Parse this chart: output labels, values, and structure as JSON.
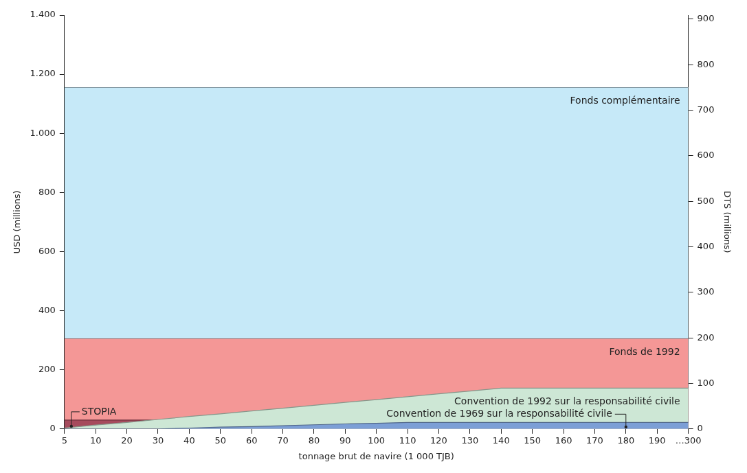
{
  "chart_data": {
    "type": "area",
    "xlabel": "tonnage brut de navire (1 000 TJB)",
    "ylabel": "USD (millions)",
    "y2label": "DTS (millions)",
    "categories": [
      "5",
      "10",
      "20",
      "30",
      "40",
      "50",
      "60",
      "70",
      "80",
      "90",
      "100",
      "110",
      "120",
      "130",
      "140",
      "150",
      "160",
      "170",
      "180",
      "190",
      "…300"
    ],
    "series": [
      {
        "name": "Fonds complémentaire",
        "color": "#c6e9f8",
        "values": [
          1155,
          1155,
          1155,
          1155,
          1155,
          1155,
          1155,
          1155,
          1155,
          1155,
          1155,
          1155,
          1155,
          1155,
          1155,
          1155,
          1155,
          1155,
          1155,
          1155,
          1155
        ]
      },
      {
        "name": "Fonds de 1992",
        "color": "#f49796",
        "values": [
          305,
          305,
          305,
          305,
          305,
          305,
          305,
          305,
          305,
          305,
          305,
          305,
          305,
          305,
          305,
          305,
          305,
          305,
          305,
          305,
          305
        ]
      },
      {
        "name": "STOPIA",
        "color": "#a64b5d",
        "values": [
          30,
          30,
          30,
          30,
          null,
          null,
          null,
          null,
          null,
          null,
          null,
          null,
          null,
          null,
          null,
          null,
          null,
          null,
          null,
          null,
          null
        ]
      },
      {
        "name": "Convention de 1992 sur la responsabilité civile",
        "color": "#cde7d5",
        "values": [
          3,
          13,
          22,
          32,
          42,
          51,
          61,
          70,
          80,
          90,
          99,
          109,
          119,
          128,
          138,
          138,
          138,
          138,
          138,
          138,
          138
        ]
      },
      {
        "name": "Convention de 1969 sur la responsabilité civile",
        "color": "#7c9fd6",
        "values": [
          0,
          0,
          0,
          0,
          3,
          6,
          8,
          11,
          14,
          17,
          19,
          22,
          22,
          22,
          22,
          22,
          22,
          22,
          22,
          22,
          22
        ]
      }
    ],
    "ylim": [
      0,
      1400
    ],
    "yticks": [
      0,
      200,
      400,
      600,
      800,
      {
        "value": 1000,
        "label": "1.000"
      },
      {
        "value": 1200,
        "label": "1.200"
      },
      {
        "value": 1400,
        "label": "1.400"
      }
    ],
    "y2lim": [
      0,
      909
    ],
    "y2ticks": [
      0,
      100,
      200,
      300,
      400,
      500,
      600,
      700,
      800,
      900
    ],
    "legend": false
  }
}
